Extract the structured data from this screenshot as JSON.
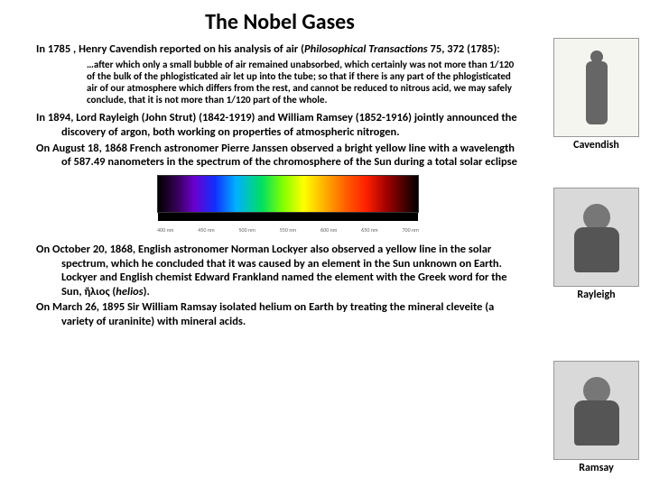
{
  "title": "The Nobel Gases",
  "para1_pre": "In 1785 , Henry Cavendish reported on his analysis of air (",
  "para1_ital": "Philosophical Transactions",
  "para1_post": " 75, 372 (1785):",
  "quote": "…after which only a small bubble of air remained unabsorbed, which certainly was not more than 1/120 of the bulk of the phlogisticated air let up into the tube; so that if there is any part of the phlogisticated air of our atmosphere which differs from the rest, and cannot be reduced to nitrous acid, we may safely conclude, that it is not more than 1/120 part of the whole.",
  "para2": "In 1894, Lord Rayleigh (John Strut) (1842-1919) and William Ramsey (1852-1916) jointly announced the discovery of argon, both working on properties of atmospheric nitrogen.",
  "para3": "On August 18, 1868 French astronomer Pierre Janssen observed a bright yellow line with a wavelength of 587.49 nanometers in the spectrum of the chromosphere of the Sun during a total solar eclipse",
  "para4_a": "On October 20, 1868, English astronomer Norman Lockyer also observed a yellow line in the solar spectrum, which he concluded that it was caused by an element in the Sun unknown on Earth. Lockyer and English chemist Edward Frankland named the element with the Greek word for the Sun, ἥλιος (",
  "para4_ital": "helios",
  "para4_b": ").",
  "para5": "On March 26, 1895 Sir William Ramsay isolated helium on Earth by treating the mineral cleveite (a variety of uraninite) with mineral acids.",
  "caption1": "Cavendish",
  "caption2": "Rayleigh",
  "caption3": "Ramsay",
  "scale": [
    "400 nm",
    "450 nm",
    "500 nm",
    "550 nm",
    "600 nm",
    "650 nm",
    "700 nm"
  ]
}
